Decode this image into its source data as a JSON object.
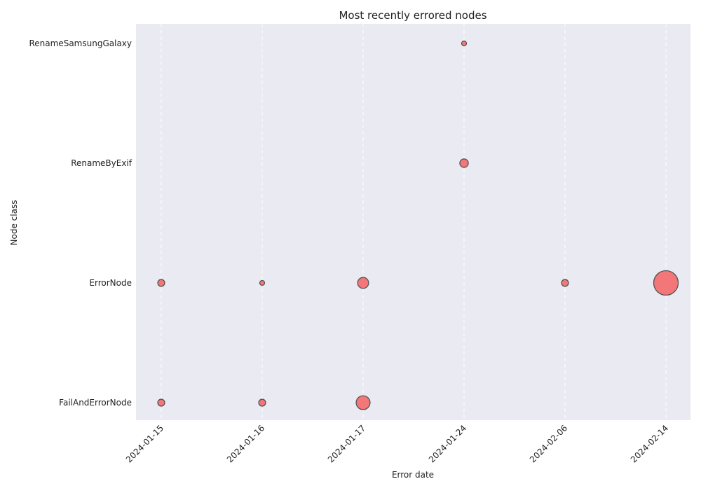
{
  "chart_data": {
    "type": "scatter",
    "title": "Most recently errored nodes",
    "xlabel": "Error date",
    "ylabel": "Node class",
    "x_categories": [
      "2024-01-15",
      "2024-01-16",
      "2024-01-17",
      "2024-01-24",
      "2024-02-06",
      "2024-02-14"
    ],
    "y_categories": [
      "FailAndErrorNode",
      "ErrorNode",
      "RenameByExif",
      "RenameSamsungGalaxy"
    ],
    "points": [
      {
        "x": "2024-01-15",
        "y": "FailAndErrorNode",
        "size": 2
      },
      {
        "x": "2024-01-16",
        "y": "FailAndErrorNode",
        "size": 2
      },
      {
        "x": "2024-01-17",
        "y": "FailAndErrorNode",
        "size": 8
      },
      {
        "x": "2024-01-15",
        "y": "ErrorNode",
        "size": 2
      },
      {
        "x": "2024-01-16",
        "y": "ErrorNode",
        "size": 1
      },
      {
        "x": "2024-01-17",
        "y": "ErrorNode",
        "size": 5
      },
      {
        "x": "2024-02-06",
        "y": "ErrorNode",
        "size": 2
      },
      {
        "x": "2024-02-14",
        "y": "ErrorNode",
        "size": 25
      },
      {
        "x": "2024-01-24",
        "y": "RenameByExif",
        "size": 3
      },
      {
        "x": "2024-01-24",
        "y": "RenameSamsungGalaxy",
        "size": 1
      }
    ],
    "grid": "vertical-dashed",
    "legend": "none",
    "colors": {
      "marker_fill": "#f4696b",
      "marker_edge": "#555555",
      "plot_background": "#eaeaf2",
      "grid": "#ffffff"
    }
  }
}
